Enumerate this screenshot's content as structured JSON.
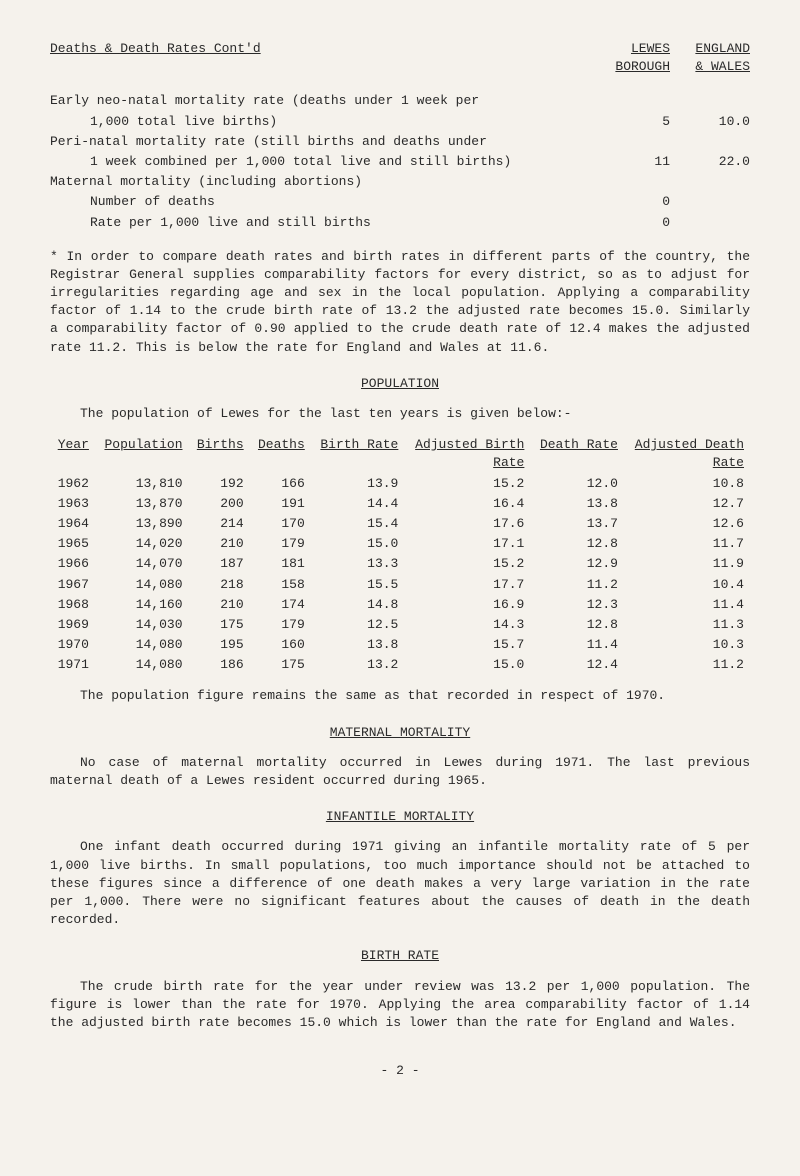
{
  "header": {
    "title": "Deaths & Death Rates Cont'd",
    "col1_top": "LEWES",
    "col1_bot": "BOROUGH",
    "col2_top": "ENGLAND",
    "col2_bot": "& WALES"
  },
  "rates": [
    {
      "label": "Early neo-natal mortality rate (deaths under 1 week per",
      "v1": "",
      "v2": ""
    },
    {
      "label": "1,000 total live births)",
      "v1": "5",
      "v2": "10.0",
      "indent": true
    },
    {
      "label": "Peri-natal mortality rate (still births and deaths under",
      "v1": "",
      "v2": ""
    },
    {
      "label": "1 week combined per 1,000 total live and still births)",
      "v1": "11",
      "v2": "22.0",
      "indent": true
    },
    {
      "label": "Maternal mortality (including abortions)",
      "v1": "",
      "v2": ""
    },
    {
      "label": "Number of deaths",
      "v1": "0",
      "v2": "",
      "indent": true
    },
    {
      "label": "Rate per 1,000 live and still births",
      "v1": "0",
      "v2": "",
      "indent": true
    }
  ],
  "footnote": "* In order to compare death rates and birth rates in different parts of the country, the Registrar General supplies comparability factors for every district, so as to adjust for irregularities regarding age and sex in the local population. Applying a comparability factor of 1.14 to the crude birth rate of 13.2 the adjusted rate becomes 15.0. Similarly a comparability factor of 0.90 applied to the crude death rate of 12.4 makes the adjusted rate 11.2. This is below the rate for England and Wales at 11.6.",
  "population": {
    "title": "POPULATION",
    "intro": "The population of Lewes for the last ten years is given below:-",
    "columns": [
      "Year",
      "Population",
      "Births",
      "Deaths",
      "Birth Rate",
      "Adjusted Birth Rate",
      "Death Rate",
      "Adjusted Death Rate"
    ],
    "rows": [
      [
        "1962",
        "13,810",
        "192",
        "166",
        "13.9",
        "15.2",
        "12.0",
        "10.8"
      ],
      [
        "1963",
        "13,870",
        "200",
        "191",
        "14.4",
        "16.4",
        "13.8",
        "12.7"
      ],
      [
        "1964",
        "13,890",
        "214",
        "170",
        "15.4",
        "17.6",
        "13.7",
        "12.6"
      ],
      [
        "1965",
        "14,020",
        "210",
        "179",
        "15.0",
        "17.1",
        "12.8",
        "11.7"
      ],
      [
        "1966",
        "14,070",
        "187",
        "181",
        "13.3",
        "15.2",
        "12.9",
        "11.9"
      ],
      [
        "1967",
        "14,080",
        "218",
        "158",
        "15.5",
        "17.7",
        "11.2",
        "10.4"
      ],
      [
        "1968",
        "14,160",
        "210",
        "174",
        "14.8",
        "16.9",
        "12.3",
        "11.4"
      ],
      [
        "1969",
        "14,030",
        "175",
        "179",
        "12.5",
        "14.3",
        "12.8",
        "11.3"
      ],
      [
        "1970",
        "14,080",
        "195",
        "160",
        "13.8",
        "15.7",
        "11.4",
        "10.3"
      ],
      [
        "1971",
        "14,080",
        "186",
        "175",
        "13.2",
        "15.0",
        "12.4",
        "11.2"
      ]
    ],
    "footnote": "The population figure remains the same as that recorded in respect of 1970."
  },
  "maternal": {
    "title": "MATERNAL MORTALITY",
    "text": "No case of maternal mortality occurred in Lewes during 1971. The last previous maternal death of a Lewes resident occurred during 1965."
  },
  "infantile": {
    "title": "INFANTILE MORTALITY",
    "text": "One infant death occurred during 1971 giving an infantile mortality rate of 5 per 1,000 live births. In small populations, too much importance should not be attached to these figures since a difference of one death makes a very large variation in the rate per 1,000. There were no significant features about the causes of death in the death recorded."
  },
  "birthrate": {
    "title": "BIRTH RATE",
    "text": "The crude birth rate for the year under review was 13.2 per 1,000 population. The figure is lower than the rate for 1970. Applying the area comparability factor of 1.14 the adjusted birth rate becomes 15.0 which is lower than the rate for England and Wales."
  },
  "pagenum": "- 2 -"
}
